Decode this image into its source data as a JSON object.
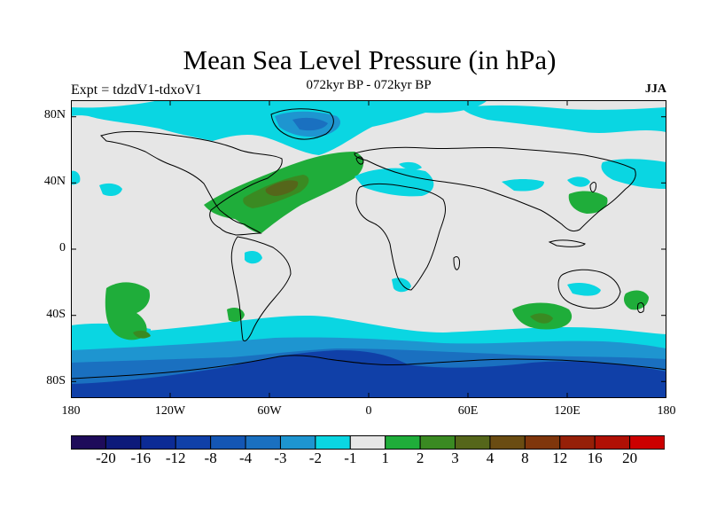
{
  "title": "Mean Sea Level Pressure (in hPa)",
  "subtitle": "072kyr BP - 072kyr BP",
  "experiment_label": "Expt = tdzdV1-tdxoV1",
  "season_label": "JJA",
  "y_axis": {
    "ticks": [
      "80N",
      "40N",
      "0",
      "40S",
      "80S"
    ]
  },
  "x_axis": {
    "ticks": [
      "180",
      "120W",
      "60W",
      "0",
      "60E",
      "120E",
      "180"
    ]
  },
  "colorbar": {
    "colors": [
      "#1e0b5a",
      "#0d1a7a",
      "#0c2b95",
      "#1040a8",
      "#1456b4",
      "#1a70c0",
      "#1e95d0",
      "#0ad6e2",
      "#e6e6e6",
      "#1fad3a",
      "#3a8a22",
      "#55661a",
      "#6a4c12",
      "#7f360c",
      "#962008",
      "#b01005",
      "#cc0000"
    ],
    "labels": [
      "-20",
      "-16",
      "-12",
      "-8",
      "-4",
      "-3",
      "-2",
      "-1",
      "1",
      "2",
      "3",
      "4",
      "8",
      "12",
      "16",
      "20"
    ]
  },
  "palette": {
    "neutral": "#e6e6e6",
    "cyan": "#0ad6e2",
    "blue_light": "#1e95d0",
    "blue_mid": "#1a70c0",
    "blue_dark": "#1040a8",
    "green": "#1fad3a",
    "green_dark": "#3a8a22",
    "brown": "#55661a"
  }
}
